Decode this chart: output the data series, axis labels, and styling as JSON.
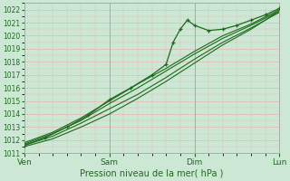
{
  "title": "",
  "xlabel": "Pression niveau de la mer( hPa )",
  "ylim": [
    1011.0,
    1022.5
  ],
  "xlim": [
    0,
    72
  ],
  "yticks": [
    1011,
    1012,
    1013,
    1014,
    1015,
    1016,
    1017,
    1018,
    1019,
    1020,
    1021,
    1022
  ],
  "xtick_positions": [
    0,
    24,
    48,
    72
  ],
  "xtick_labels": [
    "Ven",
    "Sam",
    "Dim",
    "Lun"
  ],
  "bg_color": "#cce8d4",
  "plot_bg_color": "#cce8d4",
  "grid_color": "#e8b4b4",
  "line_color": "#1a6b1a",
  "marker_color": "#1a6b1a",
  "lines": [
    {
      "x": [
        0,
        8,
        16,
        24,
        32,
        40,
        48,
        56,
        64,
        72
      ],
      "y": [
        1011.6,
        1012.3,
        1013.3,
        1014.4,
        1015.5,
        1016.8,
        1018.2,
        1019.5,
        1020.6,
        1021.8
      ],
      "marker": false,
      "lw": 0.8
    },
    {
      "x": [
        0,
        8,
        16,
        24,
        32,
        40,
        48,
        56,
        64,
        72
      ],
      "y": [
        1011.5,
        1012.1,
        1013.0,
        1014.0,
        1015.2,
        1016.5,
        1017.9,
        1019.3,
        1020.5,
        1021.9
      ],
      "marker": false,
      "lw": 0.8
    },
    {
      "x": [
        0,
        8,
        16,
        24,
        32,
        40,
        48,
        56,
        64,
        72
      ],
      "y": [
        1011.7,
        1012.5,
        1013.5,
        1014.8,
        1016.0,
        1017.3,
        1018.6,
        1019.8,
        1020.8,
        1021.9
      ],
      "marker": false,
      "lw": 0.8
    },
    {
      "x": [
        0,
        8,
        16,
        24,
        32,
        40,
        48,
        56,
        64,
        72
      ],
      "y": [
        1011.8,
        1012.6,
        1013.7,
        1015.0,
        1016.3,
        1017.5,
        1018.8,
        1020.0,
        1020.9,
        1022.0
      ],
      "marker": false,
      "lw": 0.8
    },
    {
      "x": [
        0,
        6,
        12,
        18,
        24,
        30,
        36,
        40,
        42,
        44,
        46,
        48,
        52,
        56,
        60,
        64,
        68,
        72
      ],
      "y": [
        1011.6,
        1012.2,
        1013.0,
        1013.9,
        1015.1,
        1016.0,
        1017.0,
        1017.8,
        1019.5,
        1020.5,
        1021.2,
        1020.8,
        1020.4,
        1020.5,
        1020.8,
        1021.2,
        1021.6,
        1022.1
      ],
      "marker": true,
      "lw": 0.9
    }
  ]
}
